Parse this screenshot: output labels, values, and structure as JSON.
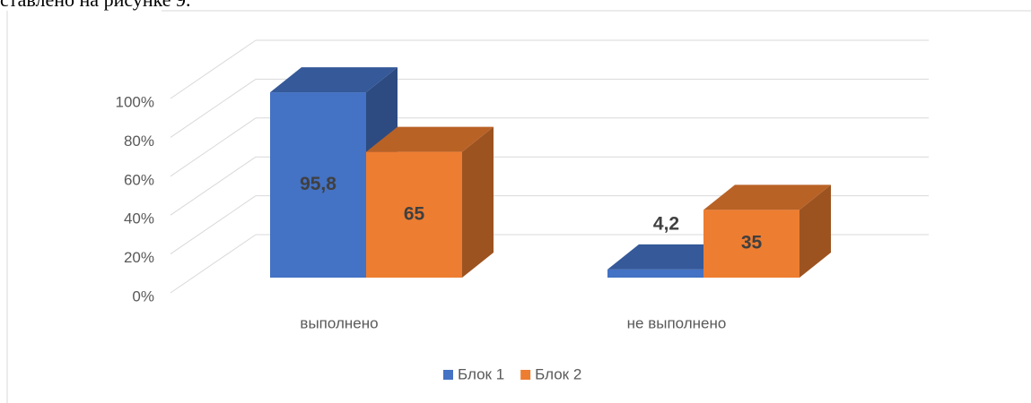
{
  "page_text": "ставлено на рисунке 9.",
  "chart_data": {
    "type": "bar3d",
    "categories": [
      "выполнено",
      "не выполнено"
    ],
    "series": [
      {
        "name": "Блок 1",
        "color": "#4472c4",
        "values": [
          95.8,
          4.2
        ],
        "value_labels": [
          "95,8",
          "4,2"
        ]
      },
      {
        "name": "Блок 2",
        "color": "#ed7d31",
        "values": [
          65,
          35
        ]
      }
    ],
    "ylim": [
      0,
      100
    ],
    "yticks": [
      {
        "value": 0,
        "label": "0%"
      },
      {
        "value": 20,
        "label": "20%"
      },
      {
        "value": 40,
        "label": "40%"
      },
      {
        "value": 60,
        "label": "60%"
      },
      {
        "value": 80,
        "label": "80%"
      },
      {
        "value": 100,
        "label": "100%"
      }
    ],
    "grid": true,
    "legend": "bottom"
  }
}
